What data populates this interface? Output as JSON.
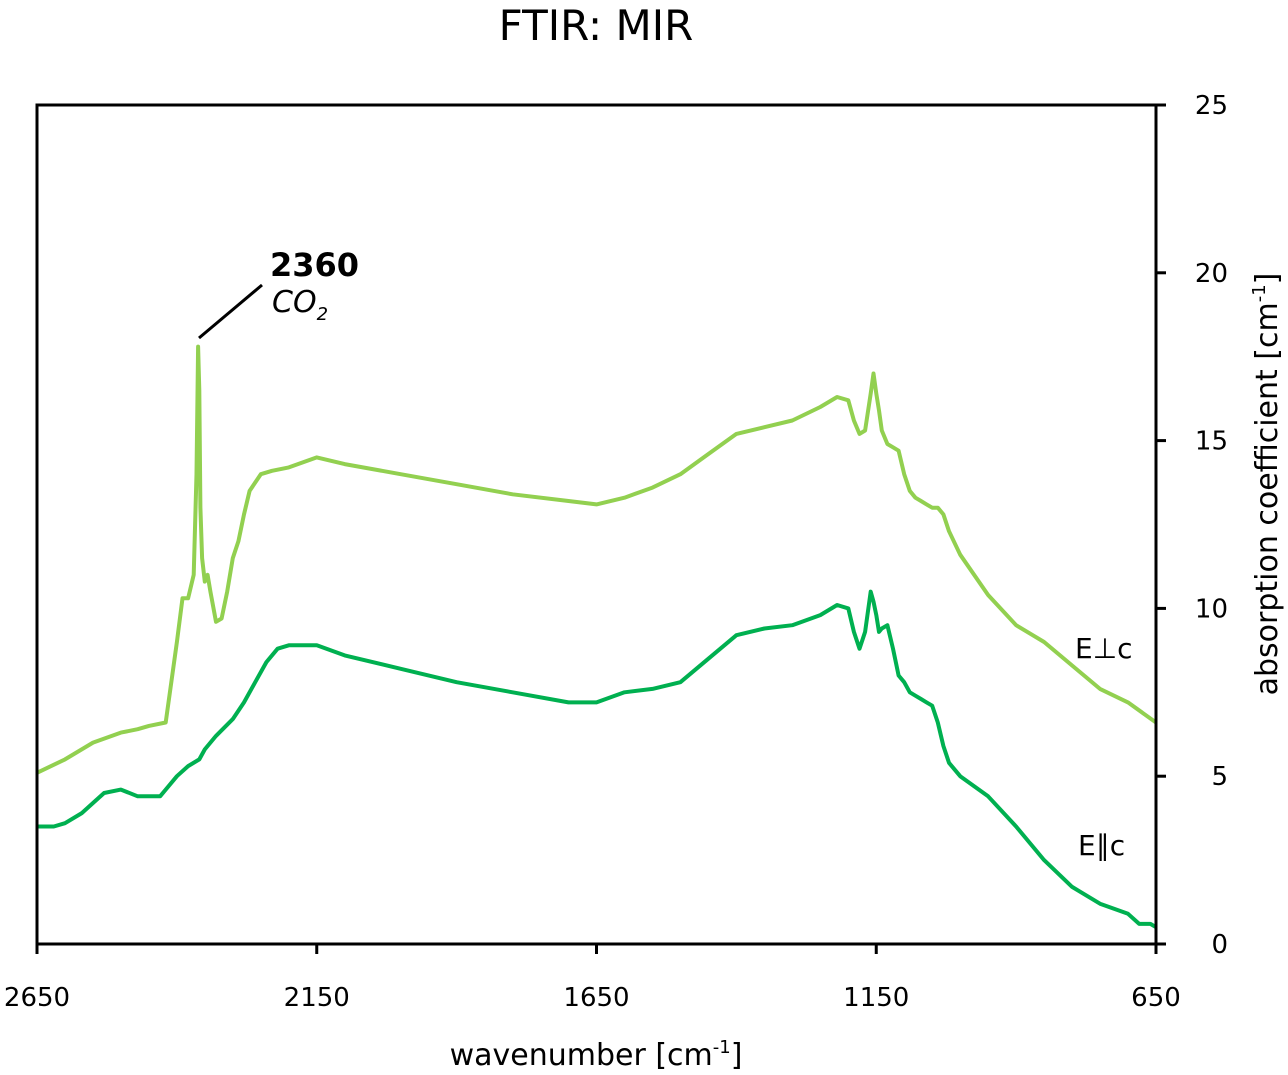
{
  "chart_data": {
    "type": "line",
    "title": "FTIR: MIR",
    "xlabel": "wavenumber [cm",
    "xlabel_sup": "-1",
    "xlabel_end": "]",
    "ylabel": "absorption coefficient [cm",
    "ylabel_sup": "-1",
    "ylabel_end": "]",
    "xlim": [
      2650,
      650
    ],
    "x_reversed": true,
    "ylim": [
      0,
      25
    ],
    "x_ticks": [
      2650,
      2150,
      1650,
      1150,
      650
    ],
    "y_ticks": [
      0,
      5,
      10,
      15,
      20,
      25
    ],
    "y_axis_side": "right",
    "grid": false,
    "legend": "none (labels at right end of series)",
    "annotation": {
      "value_label": "2360",
      "species_main": "CO",
      "species_sub": "2",
      "x": 2360,
      "y": 17.8
    },
    "series": [
      {
        "name": "E⊥c",
        "color": "#92d050",
        "x": [
          2650,
          2600,
          2550,
          2500,
          2470,
          2450,
          2420,
          2400,
          2390,
          2380,
          2370,
          2365,
          2362,
          2360,
          2358,
          2355,
          2350,
          2345,
          2340,
          2330,
          2320,
          2310,
          2300,
          2290,
          2280,
          2270,
          2250,
          2230,
          2200,
          2150,
          2100,
          2000,
          1900,
          1800,
          1700,
          1650,
          1600,
          1550,
          1500,
          1450,
          1400,
          1350,
          1300,
          1250,
          1220,
          1200,
          1190,
          1180,
          1170,
          1160,
          1155,
          1150,
          1145,
          1140,
          1130,
          1120,
          1110,
          1100,
          1090,
          1080,
          1070,
          1060,
          1050,
          1040,
          1030,
          1020,
          1000,
          950,
          900,
          850,
          800,
          750,
          700,
          650
        ],
        "values": [
          5.1,
          5.5,
          6.0,
          6.3,
          6.4,
          6.5,
          6.6,
          9.0,
          10.3,
          10.3,
          11.0,
          14.0,
          17.8,
          16.5,
          13.0,
          11.5,
          10.8,
          11.0,
          10.5,
          9.6,
          9.7,
          10.5,
          11.5,
          12.0,
          12.8,
          13.5,
          14.0,
          14.1,
          14.2,
          14.5,
          14.3,
          14.0,
          13.7,
          13.4,
          13.2,
          13.1,
          13.3,
          13.6,
          14.0,
          14.6,
          15.2,
          15.4,
          15.6,
          16.0,
          16.3,
          16.2,
          15.6,
          15.2,
          15.3,
          16.4,
          17.0,
          16.4,
          15.9,
          15.3,
          14.9,
          14.8,
          14.7,
          14.0,
          13.5,
          13.3,
          13.2,
          13.1,
          13.0,
          13.0,
          12.8,
          12.3,
          11.6,
          10.4,
          9.5,
          9.0,
          8.3,
          7.6,
          7.2,
          6.6
        ]
      },
      {
        "name": "E∥c",
        "color": "#00b050",
        "x": [
          2650,
          2620,
          2600,
          2570,
          2550,
          2530,
          2500,
          2470,
          2450,
          2430,
          2420,
          2400,
          2380,
          2360,
          2350,
          2330,
          2300,
          2280,
          2260,
          2240,
          2220,
          2200,
          2180,
          2150,
          2100,
          2000,
          1900,
          1800,
          1700,
          1650,
          1600,
          1550,
          1500,
          1450,
          1400,
          1350,
          1300,
          1250,
          1220,
          1200,
          1190,
          1180,
          1170,
          1160,
          1155,
          1150,
          1145,
          1140,
          1130,
          1120,
          1110,
          1100,
          1090,
          1080,
          1070,
          1060,
          1050,
          1040,
          1030,
          1020,
          1000,
          950,
          900,
          850,
          800,
          750,
          700,
          680,
          660,
          650
        ],
        "values": [
          3.5,
          3.5,
          3.6,
          3.9,
          4.2,
          4.5,
          4.6,
          4.4,
          4.4,
          4.4,
          4.6,
          5.0,
          5.3,
          5.5,
          5.8,
          6.2,
          6.7,
          7.2,
          7.8,
          8.4,
          8.8,
          8.9,
          8.9,
          8.9,
          8.6,
          8.2,
          7.8,
          7.5,
          7.2,
          7.2,
          7.5,
          7.6,
          7.8,
          8.5,
          9.2,
          9.4,
          9.5,
          9.8,
          10.1,
          10.0,
          9.3,
          8.8,
          9.3,
          10.5,
          10.2,
          9.8,
          9.3,
          9.4,
          9.5,
          8.8,
          8.0,
          7.8,
          7.5,
          7.4,
          7.3,
          7.2,
          7.1,
          6.6,
          5.9,
          5.4,
          5.0,
          4.4,
          3.5,
          2.5,
          1.7,
          1.2,
          0.9,
          0.6,
          0.6,
          0.5
        ]
      }
    ]
  }
}
